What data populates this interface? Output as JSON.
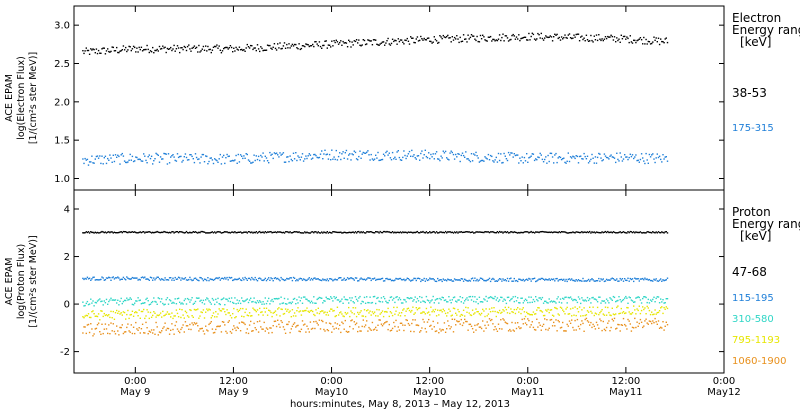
{
  "colors": {
    "black": "#000000",
    "blue": "#1f7fd8",
    "cyan": "#2fd6c6",
    "yellow": "#e6e600",
    "orange": "#e8901c"
  },
  "x_axis": {
    "title": "hours:minutes,  May  8, 2013 – May 12, 2013",
    "ticks": [
      {
        "t": 0,
        "time": "0:00",
        "date": "May 9"
      },
      {
        "t": 12,
        "time": "12:00",
        "date": "May 9"
      },
      {
        "t": 24,
        "time": "0:00",
        "date": "May10"
      },
      {
        "t": 36,
        "time": "12:00",
        "date": "May10"
      },
      {
        "t": 48,
        "time": "0:00",
        "date": "May11"
      },
      {
        "t": 60,
        "time": "12:00",
        "date": "May11"
      },
      {
        "t": 72,
        "time": "0:00",
        "date": "May12"
      }
    ]
  },
  "chart_data": [
    {
      "type": "scatter",
      "panel": "electron",
      "ylabel": [
        "ACE EPAM",
        "log(Electron Flux)",
        "[1/(cm²s ster MeV)]"
      ],
      "ylim": [
        0.85,
        3.25
      ],
      "yticks": [
        "1.0",
        "1.5",
        "2.0",
        "2.5",
        "3.0"
      ],
      "ytick_values": [
        1.0,
        1.5,
        2.0,
        2.5,
        3.0
      ],
      "xlim_hours": [
        -7.5,
        72
      ],
      "data_range_hours": [
        -6.5,
        65
      ],
      "legend_title": [
        "Electron",
        "Energy ranges",
        "[keV]"
      ],
      "series": [
        {
          "name": "38-53",
          "color": "#000000",
          "x_hours": [
            -6,
            0,
            12,
            24,
            36,
            48,
            60,
            64
          ],
          "y": [
            2.66,
            2.7,
            2.7,
            2.76,
            2.82,
            2.86,
            2.83,
            2.8
          ],
          "noise": 0.05
        },
        {
          "name": "175-315",
          "color": "#1f7fd8",
          "x_hours": [
            -6,
            0,
            12,
            24,
            36,
            48,
            60,
            64
          ],
          "y": [
            1.25,
            1.27,
            1.26,
            1.32,
            1.31,
            1.27,
            1.28,
            1.27
          ],
          "noise": 0.07
        }
      ]
    },
    {
      "type": "scatter",
      "panel": "proton",
      "ylabel": [
        "ACE EPAM",
        "log(Proton Flux)",
        "[1/(cm²s ster MeV)]"
      ],
      "ylim": [
        -2.9,
        4.8
      ],
      "yticks": [
        "-2",
        "0",
        "2",
        "4"
      ],
      "ytick_values": [
        -2,
        0,
        2,
        4
      ],
      "xlim_hours": [
        -7.5,
        72
      ],
      "data_range_hours": [
        -6.5,
        65
      ],
      "legend_title": [
        "Proton",
        "Energy ranges",
        "[keV]"
      ],
      "series": [
        {
          "name": "47-68",
          "color": "#000000",
          "x_hours": [
            -6,
            0,
            12,
            24,
            36,
            48,
            60,
            64
          ],
          "y": [
            3.05,
            3.05,
            3.05,
            3.05,
            3.05,
            3.05,
            3.05,
            3.05
          ],
          "noise": 0.03
        },
        {
          "name": "115-195",
          "color": "#1f7fd8",
          "x_hours": [
            -6,
            0,
            12,
            24,
            36,
            48,
            60,
            64
          ],
          "y": [
            1.1,
            1.1,
            1.08,
            1.08,
            1.05,
            1.05,
            1.05,
            1.05
          ],
          "noise": 0.07
        },
        {
          "name": "310-580",
          "color": "#2fd6c6",
          "x_hours": [
            -6,
            0,
            12,
            24,
            36,
            48,
            60,
            64
          ],
          "y": [
            0.1,
            0.15,
            0.15,
            0.2,
            0.2,
            0.2,
            0.2,
            0.2
          ],
          "noise": 0.15
        },
        {
          "name": "795-1193",
          "color": "#e6e600",
          "x_hours": [
            -6,
            0,
            12,
            24,
            36,
            48,
            60,
            64
          ],
          "y": [
            -0.45,
            -0.4,
            -0.35,
            -0.3,
            -0.3,
            -0.3,
            -0.25,
            -0.25
          ],
          "noise": 0.2
        },
        {
          "name": "1060-1900",
          "color": "#e8901c",
          "x_hours": [
            -6,
            0,
            12,
            24,
            36,
            48,
            60,
            64
          ],
          "y": [
            -1.05,
            -1.0,
            -0.95,
            -0.9,
            -0.9,
            -0.85,
            -0.85,
            -0.8
          ],
          "noise": 0.28
        }
      ]
    }
  ]
}
